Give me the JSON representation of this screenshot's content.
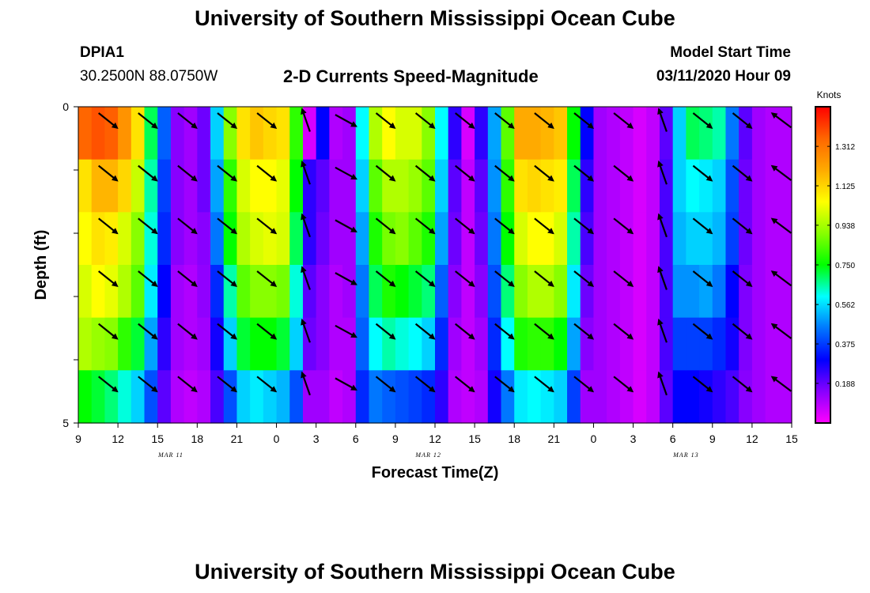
{
  "header": {
    "title": "University of Southern Mississippi Ocean Cube",
    "station": "DPIA1",
    "location": "30.2500N 88.0750W",
    "subtitle": "2-D Currents Speed-Magnitude",
    "model_start_label": "Model Start Time",
    "model_start_value": "03/11/2020 Hour 09"
  },
  "footer": {
    "title": "University of Southern Mississippi Ocean Cube"
  },
  "chart_data": {
    "type": "heatmap",
    "title": "2-D Currents Speed-Magnitude",
    "xlabel": "Forecast Time(Z)",
    "ylabel": "Depth (ft)",
    "x_tick_labels": [
      "9",
      "12",
      "15",
      "18",
      "21",
      "0",
      "3",
      "6",
      "9",
      "12",
      "15",
      "18",
      "21",
      "0",
      "3",
      "6",
      "9",
      "12",
      "15"
    ],
    "date_labels": [
      {
        "label": "MAR 11",
        "hours_from_start": 7
      },
      {
        "label": "MAR 12",
        "hours_from_start": 26.5
      },
      {
        "label": "MAR 13",
        "hours_from_start": 46
      }
    ],
    "x_range_hours": [
      0,
      54
    ],
    "y_range_ft": [
      0,
      5
    ],
    "y_tick_labels": [
      "0",
      "5"
    ],
    "colorbar": {
      "unit": "Knots",
      "range": [
        0,
        1.5
      ],
      "tick_labels": [
        "1.312",
        "1.125",
        "0.938",
        "0.750",
        "0.562",
        "0.375",
        "0.188"
      ],
      "colors": [
        "#ff00ff",
        "#8800ff",
        "#0000ff",
        "#0077ff",
        "#00ffff",
        "#00ff00",
        "#88ff00",
        "#ffff00",
        "#ffaa00",
        "#ff6600",
        "#ff0000"
      ]
    },
    "series": [
      {
        "hour": 0,
        "speeds": [
          1.35,
          1.1,
          1.05,
          1.0,
          0.95,
          0.75
        ]
      },
      {
        "hour": 1,
        "speeds": [
          1.38,
          1.18,
          1.1,
          1.05,
          0.92,
          0.72
        ]
      },
      {
        "hour": 2,
        "speeds": [
          1.36,
          1.18,
          1.08,
          1.02,
          0.9,
          0.68
        ]
      },
      {
        "hour": 3,
        "speeds": [
          1.25,
          1.12,
          1.0,
          0.95,
          0.8,
          0.62
        ]
      },
      {
        "hour": 4,
        "speeds": [
          1.1,
          0.98,
          0.9,
          0.85,
          0.72,
          0.55
        ]
      },
      {
        "hour": 5,
        "speeds": [
          0.7,
          0.65,
          0.62,
          0.58,
          0.5,
          0.4
        ]
      },
      {
        "hour": 6,
        "speeds": [
          0.42,
          0.38,
          0.35,
          0.3,
          0.25,
          0.2
        ]
      },
      {
        "hour": 7,
        "speeds": [
          0.15,
          0.15,
          0.15,
          0.12,
          0.12,
          0.1
        ]
      },
      {
        "hour": 8,
        "speeds": [
          0.12,
          0.12,
          0.12,
          0.1,
          0.1,
          0.08
        ]
      },
      {
        "hour": 9,
        "speeds": [
          0.18,
          0.18,
          0.15,
          0.14,
          0.12,
          0.1
        ]
      },
      {
        "hour": 10,
        "speeds": [
          0.55,
          0.5,
          0.45,
          0.35,
          0.28,
          0.22
        ]
      },
      {
        "hour": 11,
        "speeds": [
          0.9,
          0.8,
          0.75,
          0.65,
          0.55,
          0.4
        ]
      },
      {
        "hour": 12,
        "speeds": [
          1.1,
          1.0,
          0.95,
          0.85,
          0.72,
          0.55
        ]
      },
      {
        "hour": 13,
        "speeds": [
          1.15,
          1.05,
          1.0,
          0.9,
          0.75,
          0.58
        ]
      },
      {
        "hour": 14,
        "speeds": [
          1.12,
          1.05,
          1.02,
          0.9,
          0.75,
          0.55
        ]
      },
      {
        "hour": 15,
        "speeds": [
          1.1,
          1.02,
          1.0,
          0.88,
          0.72,
          0.52
        ]
      },
      {
        "hour": 16,
        "speeds": [
          0.8,
          0.75,
          0.7,
          0.62,
          0.55,
          0.4
        ]
      },
      {
        "hour": 17,
        "speeds": [
          0.05,
          0.25,
          0.25,
          0.2,
          0.18,
          0.12
        ]
      },
      {
        "hour": 18,
        "speeds": [
          0.3,
          0.2,
          0.18,
          0.15,
          0.15,
          0.12
        ]
      },
      {
        "hour": 19,
        "speeds": [
          0.1,
          0.12,
          0.12,
          0.1,
          0.1,
          0.08
        ]
      },
      {
        "hour": 20,
        "speeds": [
          0.12,
          0.12,
          0.12,
          0.12,
          0.1,
          0.1
        ]
      },
      {
        "hour": 21,
        "speeds": [
          0.6,
          0.55,
          0.5,
          0.45,
          0.42,
          0.35
        ]
      },
      {
        "hour": 22,
        "speeds": [
          0.95,
          0.85,
          0.78,
          0.7,
          0.6,
          0.45
        ]
      },
      {
        "hour": 23,
        "speeds": [
          1.05,
          0.95,
          0.88,
          0.78,
          0.65,
          0.42
        ]
      },
      {
        "hour": 24,
        "speeds": [
          1.0,
          0.95,
          0.9,
          0.75,
          0.62,
          0.4
        ]
      },
      {
        "hour": 25,
        "speeds": [
          1.0,
          0.92,
          0.85,
          0.72,
          0.6,
          0.38
        ]
      },
      {
        "hour": 26,
        "speeds": [
          0.9,
          0.85,
          0.78,
          0.68,
          0.55,
          0.35
        ]
      },
      {
        "hour": 27,
        "speeds": [
          0.6,
          0.55,
          0.5,
          0.42,
          0.35,
          0.25
        ]
      },
      {
        "hour": 28,
        "speeds": [
          0.25,
          0.2,
          0.18,
          0.15,
          0.12,
          0.1
        ]
      },
      {
        "hour": 29,
        "speeds": [
          0.05,
          0.08,
          0.08,
          0.08,
          0.08,
          0.08
        ]
      },
      {
        "hour": 30,
        "speeds": [
          0.25,
          0.2,
          0.18,
          0.15,
          0.12,
          0.1
        ]
      },
      {
        "hour": 31,
        "speeds": [
          0.5,
          0.48,
          0.45,
          0.4,
          0.35,
          0.28
        ]
      },
      {
        "hour": 32,
        "speeds": [
          0.85,
          0.8,
          0.75,
          0.68,
          0.6,
          0.45
        ]
      },
      {
        "hour": 33,
        "speeds": [
          1.2,
          1.1,
          1.0,
          0.9,
          0.78,
          0.58
        ]
      },
      {
        "hour": 34,
        "speeds": [
          1.2,
          1.12,
          1.05,
          0.95,
          0.8,
          0.6
        ]
      },
      {
        "hour": 35,
        "speeds": [
          1.18,
          1.1,
          1.05,
          0.95,
          0.8,
          0.58
        ]
      },
      {
        "hour": 36,
        "speeds": [
          1.15,
          1.08,
          1.0,
          0.9,
          0.75,
          0.55
        ]
      },
      {
        "hour": 37,
        "speeds": [
          0.75,
          0.7,
          0.65,
          0.58,
          0.5,
          0.38
        ]
      },
      {
        "hour": 38,
        "speeds": [
          0.3,
          0.25,
          0.22,
          0.18,
          0.15,
          0.12
        ]
      },
      {
        "hour": 39,
        "speeds": [
          0.12,
          0.12,
          0.12,
          0.12,
          0.12,
          0.12
        ]
      },
      {
        "hour": 40,
        "speeds": [
          0.1,
          0.1,
          0.1,
          0.1,
          0.1,
          0.1
        ]
      },
      {
        "hour": 41,
        "speeds": [
          0.08,
          0.08,
          0.08,
          0.08,
          0.08,
          0.08
        ]
      },
      {
        "hour": 42,
        "speeds": [
          0.05,
          0.05,
          0.05,
          0.05,
          0.05,
          0.05
        ]
      },
      {
        "hour": 43,
        "speeds": [
          0.08,
          0.08,
          0.08,
          0.08,
          0.08,
          0.08
        ]
      },
      {
        "hour": 44,
        "speeds": [
          0.2,
          0.22,
          0.22,
          0.22,
          0.22,
          0.2
        ]
      },
      {
        "hour": 45,
        "speeds": [
          0.55,
          0.55,
          0.52,
          0.48,
          0.38,
          0.3
        ]
      },
      {
        "hour": 46,
        "speeds": [
          0.7,
          0.6,
          0.55,
          0.48,
          0.38,
          0.3
        ]
      },
      {
        "hour": 47,
        "speeds": [
          0.68,
          0.58,
          0.55,
          0.5,
          0.38,
          0.28
        ]
      },
      {
        "hour": 48,
        "speeds": [
          0.65,
          0.55,
          0.52,
          0.45,
          0.35,
          0.25
        ]
      },
      {
        "hour": 49,
        "speeds": [
          0.45,
          0.4,
          0.38,
          0.3,
          0.28,
          0.22
        ]
      },
      {
        "hour": 50,
        "speeds": [
          0.2,
          0.18,
          0.18,
          0.16,
          0.16,
          0.15
        ]
      },
      {
        "hour": 51,
        "speeds": [
          0.12,
          0.12,
          0.12,
          0.12,
          0.12,
          0.12
        ]
      },
      {
        "hour": 52,
        "speeds": [
          0.1,
          0.1,
          0.1,
          0.1,
          0.1,
          0.1
        ]
      },
      {
        "hour": 53,
        "speeds": [
          0.1,
          0.1,
          0.1,
          0.1,
          0.1,
          0.1
        ]
      }
    ],
    "vectors": [
      {
        "hour": 2,
        "dir": "SE"
      },
      {
        "hour": 5,
        "dir": "SE"
      },
      {
        "hour": 8,
        "dir": "SE"
      },
      {
        "hour": 11,
        "dir": "SE"
      },
      {
        "hour": 14,
        "dir": "SE"
      },
      {
        "hour": 17,
        "dir": "NNW"
      },
      {
        "hour": 20,
        "dir": "ESE"
      },
      {
        "hour": 23,
        "dir": "SE"
      },
      {
        "hour": 26,
        "dir": "SE"
      },
      {
        "hour": 29,
        "dir": "SE"
      },
      {
        "hour": 32,
        "dir": "SE"
      },
      {
        "hour": 35,
        "dir": "SE"
      },
      {
        "hour": 38,
        "dir": "SE"
      },
      {
        "hour": 41,
        "dir": "SE"
      },
      {
        "hour": 44,
        "dir": "NNW"
      },
      {
        "hour": 47,
        "dir": "SE"
      },
      {
        "hour": 50,
        "dir": "SE"
      },
      {
        "hour": 53,
        "dir": "NW"
      }
    ]
  }
}
